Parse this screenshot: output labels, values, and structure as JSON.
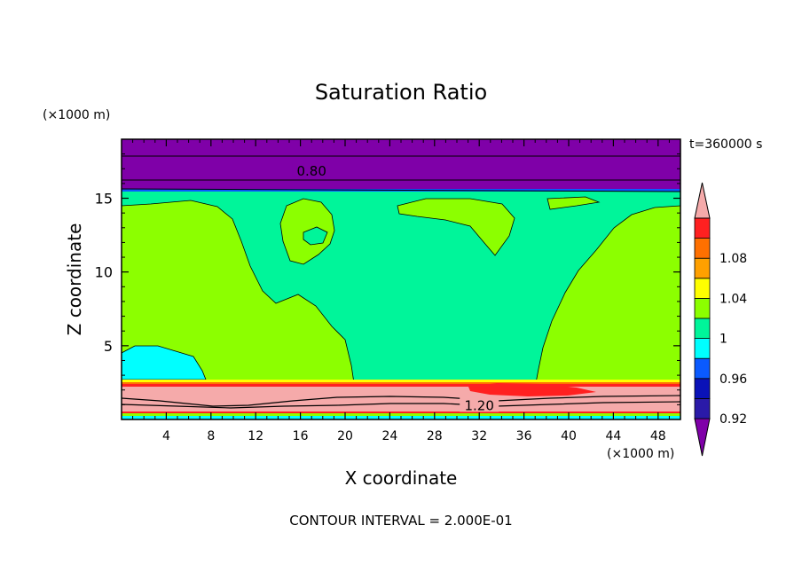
{
  "chart_data": {
    "type": "heatmap",
    "title": "Saturation Ratio",
    "xlabel": "X coordinate",
    "ylabel": "Z coordinate",
    "x_unit": "(×1000 m)",
    "y_unit": "(×1000 m)",
    "time_label": "t=360000 s",
    "footer": "CONTOUR INTERVAL = 2.000E-01",
    "xlim": [
      0,
      50
    ],
    "ylim": [
      0,
      19
    ],
    "x_ticks": [
      4,
      8,
      12,
      16,
      20,
      24,
      28,
      32,
      36,
      40,
      44,
      48
    ],
    "y_ticks": [
      5,
      10,
      15
    ],
    "contour_labels": [
      {
        "text": "0.80",
        "x": 17,
        "z": 16.9
      },
      {
        "text": "1.20",
        "x": 32,
        "z": 1.0
      }
    ],
    "colorbar": {
      "levels": [
        {
          "color": "#7f00a8"
        },
        {
          "color": "#2a1aa8"
        },
        {
          "color": "#0a12b8"
        },
        {
          "color": "#0a5aff"
        },
        {
          "color": "#00ffff"
        },
        {
          "color": "#00f59a"
        },
        {
          "color": "#8cff00"
        },
        {
          "color": "#ffff00"
        },
        {
          "color": "#ffa000"
        },
        {
          "color": "#ff7000"
        },
        {
          "color": "#ff2020"
        },
        {
          "color": "#f5aaaa"
        }
      ],
      "tick_labels": [
        {
          "label": "0.92",
          "index": 1
        },
        {
          "label": "0.96",
          "index": 3
        },
        {
          "label": "1",
          "index": 5
        },
        {
          "label": "1.04",
          "index": 7
        },
        {
          "label": "1.08",
          "index": 9
        }
      ]
    }
  }
}
